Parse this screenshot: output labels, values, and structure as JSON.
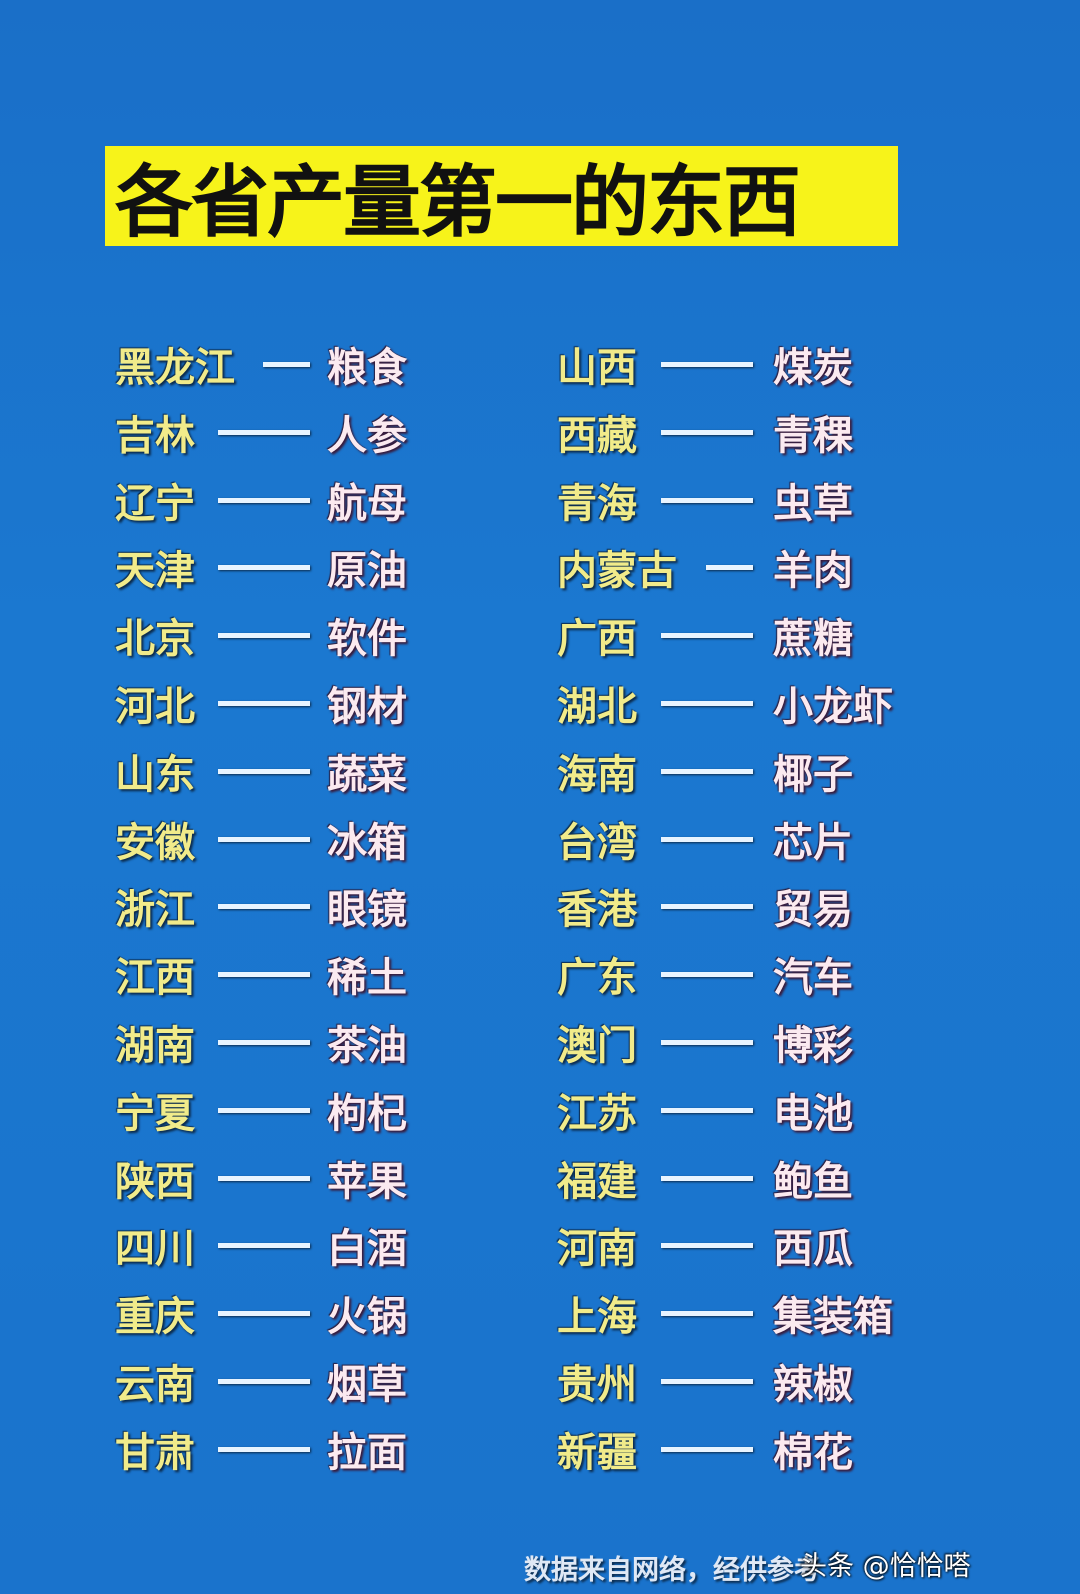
{
  "title": "各省产量第一的东西",
  "left": [
    {
      "province": "黑龙江",
      "product": "粮食"
    },
    {
      "province": "吉林",
      "product": "人参"
    },
    {
      "province": "辽宁",
      "product": "航母"
    },
    {
      "province": "天津",
      "product": "原油"
    },
    {
      "province": "北京",
      "product": "软件"
    },
    {
      "province": "河北",
      "product": "钢材"
    },
    {
      "province": "山东",
      "product": "蔬菜"
    },
    {
      "province": "安徽",
      "product": "冰箱"
    },
    {
      "province": "浙江",
      "product": "眼镜"
    },
    {
      "province": "江西",
      "product": "稀土"
    },
    {
      "province": "湖南",
      "product": "茶油"
    },
    {
      "province": "宁夏",
      "product": "枸杞"
    },
    {
      "province": "陕西",
      "product": "苹果"
    },
    {
      "province": "四川",
      "product": "白酒"
    },
    {
      "province": "重庆",
      "product": "火锅"
    },
    {
      "province": "云南",
      "product": "烟草"
    },
    {
      "province": "甘肃",
      "product": "拉面"
    }
  ],
  "right": [
    {
      "province": "山西",
      "product": "煤炭"
    },
    {
      "province": "西藏",
      "product": "青稞"
    },
    {
      "province": "青海",
      "product": "虫草"
    },
    {
      "province": "内蒙古",
      "product": "羊肉"
    },
    {
      "province": "广西",
      "product": "蔗糖"
    },
    {
      "province": "湖北",
      "product": "小龙虾"
    },
    {
      "province": "海南",
      "product": "椰子"
    },
    {
      "province": "台湾",
      "product": "芯片"
    },
    {
      "province": "香港",
      "product": "贸易"
    },
    {
      "province": "广东",
      "product": "汽车"
    },
    {
      "province": "澳门",
      "product": "博彩"
    },
    {
      "province": "江苏",
      "product": "电池"
    },
    {
      "province": "福建",
      "product": "鲍鱼"
    },
    {
      "province": "河南",
      "product": "西瓜"
    },
    {
      "province": "上海",
      "product": "集装箱"
    },
    {
      "province": "贵州",
      "product": "辣椒"
    },
    {
      "province": "新疆",
      "product": "棉花"
    }
  ],
  "footer": "数据来自网络，经供参考",
  "watermark": "头条 @恰恰嗒"
}
